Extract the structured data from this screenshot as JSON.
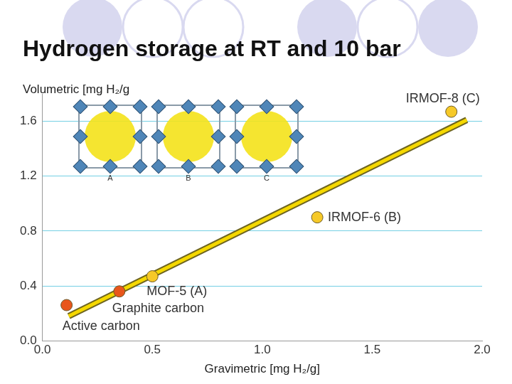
{
  "chart_data": {
    "type": "scatter",
    "title": "Hydrogen storage at RT and 10 bar",
    "x_label": "Gravimetric [mg H₂/g]",
    "y_label": "Volumetric [mg H₂/g",
    "points": [
      {
        "label": "Active carbon",
        "x": 0.11,
        "y": 0.26,
        "color": "#e8561c"
      },
      {
        "label": "Graphite carbon",
        "x": 0.35,
        "y": 0.36,
        "color": "#e8561c"
      },
      {
        "label": "MOF-5 (A)",
        "x": 0.5,
        "y": 0.47,
        "color": "#f6c928"
      },
      {
        "label": "IRMOF-6 (B)",
        "x": 1.25,
        "y": 0.9,
        "color": "#f6c928"
      },
      {
        "label": "IRMOF-8 (C)",
        "x": 1.86,
        "y": 1.67,
        "color": "#f6c928"
      }
    ],
    "trend_line": {
      "x": [
        0.12,
        1.93
      ],
      "y": [
        0.18,
        1.61
      ],
      "color": "#f5d800"
    },
    "structures": [
      "A",
      "B",
      "C"
    ],
    "marker": "circle",
    "xlim": [
      0,
      2
    ],
    "xticks": [
      {
        "value": 0,
        "label": "0.0"
      },
      0.5,
      {
        "value": 1,
        "label": "1.0"
      },
      1.5,
      {
        "value": 2,
        "label": "2.0"
      }
    ],
    "ylim": [
      0,
      1.8
    ],
    "yticks": [
      {
        "value": 0,
        "label": "0.0"
      },
      0.4,
      0.8,
      1.2,
      1.6
    ],
    "grid": true
  }
}
